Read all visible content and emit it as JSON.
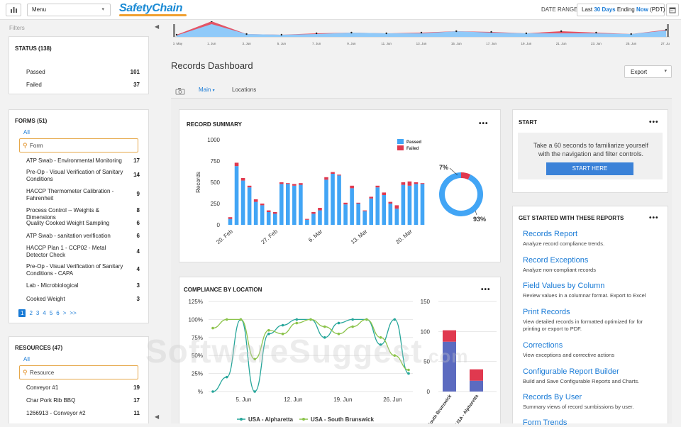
{
  "header": {
    "menu_label": "Menu",
    "logo_text": "SafetyChain",
    "date_range_label": "DATE RANGE",
    "date_range": {
      "prefix": "Last ",
      "days": "30 Days",
      "mid": " Ending ",
      "now": "Now",
      "suffix": " (PDT)"
    }
  },
  "sidebar": {
    "filters_label": "Filters",
    "status": {
      "title": "STATUS (138)",
      "items": [
        {
          "label": "Passed",
          "count": "101"
        },
        {
          "label": "Failed",
          "count": "37"
        }
      ]
    },
    "forms": {
      "title": "FORMS (51)",
      "all": "All",
      "search_placeholder": "Form",
      "items": [
        {
          "label": "ATP Swab - Environmental Monitoring",
          "count": "17"
        },
        {
          "label": "Pre-Op - Visual Verification of Sanitary Conditions",
          "count": "14"
        },
        {
          "label": "HACCP Thermometer Calibration - Fahrenheit",
          "count": "9"
        },
        {
          "label": "Process Control -- Weights & Dimensions",
          "count": "8"
        },
        {
          "label": "Quality Cooked Weight Sampling",
          "count": "6"
        },
        {
          "label": "ATP Swab - sanitation verification",
          "count": "6"
        },
        {
          "label": "HACCP Plan 1 - CCP02 - Metal Detector Check",
          "count": "4"
        },
        {
          "label": "Pre-Op - Visual Verification of Sanitary Conditions - CAPA",
          "count": "4"
        },
        {
          "label": "Lab - Microbiological",
          "count": "3"
        },
        {
          "label": "Cooked Weight",
          "count": "3"
        }
      ],
      "pages": [
        "1",
        "2",
        "3",
        "4",
        "5",
        "6",
        ">",
        ">>"
      ]
    },
    "resources": {
      "title": "RESOURCES (47)",
      "all": "All",
      "search_placeholder": "Resource",
      "items": [
        {
          "label": "Conveyor #1",
          "count": "19"
        },
        {
          "label": "Char Pork Rib BBQ",
          "count": "17"
        },
        {
          "label": "1266913 - Conveyor #2",
          "count": "11"
        }
      ]
    }
  },
  "timeline": {
    "ticks": [
      "30. May",
      "1. Jun",
      "3. Jun",
      "5. Jun",
      "7. Jun",
      "9. Jun",
      "11. Jun",
      "13. Jun",
      "15. Jun",
      "17. Jun",
      "19. Jun",
      "21. Jun",
      "23. Jun",
      "25. Jun",
      "27. Jun"
    ],
    "passed": [
      2,
      18,
      4,
      3,
      4,
      6,
      5,
      5,
      8,
      6,
      5,
      5,
      5,
      4,
      9
    ],
    "failed": [
      1,
      4,
      0,
      0,
      1,
      0,
      0,
      1,
      0,
      1,
      0,
      3,
      1,
      0,
      1
    ]
  },
  "dashboard": {
    "title": "Records Dashboard",
    "export_label": "Export",
    "tabs": [
      {
        "label": "Main"
      },
      {
        "label": "Locations"
      }
    ]
  },
  "record_summary": {
    "title": "RECORD SUMMARY",
    "more": "•••",
    "legend_passed": "Passed",
    "legend_failed": "Failed",
    "ylabel": "Records",
    "failed_pct": "7%",
    "passed_pct": "93%"
  },
  "compliance": {
    "title": "COMPLIANCE BY LOCATION",
    "more": "•••",
    "legend": [
      "USA - Alpharetta",
      "USA - South Brunswick"
    ]
  },
  "start_card": {
    "title": "START",
    "more": "•••",
    "text": "Take a 60 seconds to familiarize yourself with the navigation and filter controls.",
    "button": "START HERE"
  },
  "reports_card": {
    "title": "GET STARTED WITH THESE REPORTS",
    "more": "•••",
    "items": [
      {
        "title": "Records Report",
        "desc": "Analyze record compliance trends."
      },
      {
        "title": "Record Exceptions",
        "desc": "Analyze non-compliant records"
      },
      {
        "title": "Field Values by Column",
        "desc": "Review values in a columnar format. Export to Excel"
      },
      {
        "title": "Print Records",
        "desc": "View detailed records in formatted optimized for for printing or export to PDF."
      },
      {
        "title": "Corrections",
        "desc": "View exceptions and corrective actions"
      },
      {
        "title": "Configurable Report Builder",
        "desc": "Build and Save Configurable Reports and Charts."
      },
      {
        "title": "Records By User",
        "desc": "Summary views of record sumbissions by user."
      },
      {
        "title": "Form Trends",
        "desc": ""
      }
    ]
  },
  "watermark": "SoftwareSuggest",
  "watermark_suffix": ".com",
  "colors": {
    "accent": "#1a7bd6",
    "passed": "#42a5f5",
    "failed": "#e0394f",
    "alpharetta": "#26a69a",
    "brunswick": "#8bc34a",
    "stack_blue": "#5c6bc0"
  },
  "chart_data": [
    {
      "type": "bar",
      "stacked": true,
      "categories": [
        "20. Feb",
        "21. Feb",
        "22. Feb",
        "23. Feb",
        "24. Feb",
        "25. Feb",
        "26. Feb",
        "27. Feb",
        "28. Feb",
        "1. Mar",
        "2. Mar",
        "3. Mar",
        "4. Mar",
        "5. Mar",
        "6. Mar",
        "7. Mar",
        "8. Mar",
        "9. Mar",
        "10. Mar",
        "11. Mar",
        "12. Mar",
        "13. Mar",
        "14. Mar",
        "15. Mar",
        "16. Mar",
        "17. Mar",
        "18. Mar",
        "19. Mar",
        "20. Mar",
        "21. Mar",
        "22. Mar"
      ],
      "xtick_labels": [
        "20. Feb",
        "27. Feb",
        "6. Mar",
        "13. Mar",
        "20. Mar"
      ],
      "xtick_index": [
        0,
        7,
        14,
        21,
        28
      ],
      "series": [
        {
          "name": "Passed",
          "values": [
            70,
            690,
            520,
            440,
            270,
            230,
            150,
            130,
            480,
            480,
            460,
            470,
            60,
            130,
            170,
            530,
            600,
            580,
            240,
            430,
            250,
            160,
            310,
            440,
            350,
            250,
            190,
            470,
            460,
            480,
            480
          ]
        },
        {
          "name": "Failed",
          "values": [
            20,
            40,
            30,
            20,
            30,
            20,
            20,
            20,
            20,
            10,
            20,
            20,
            10,
            20,
            30,
            30,
            20,
            10,
            20,
            30,
            10,
            10,
            20,
            20,
            30,
            20,
            40,
            30,
            50,
            20,
            10
          ]
        }
      ],
      "ylabel": "Records",
      "yticks": [
        0,
        250,
        500,
        750,
        1000
      ],
      "ylim": [
        0,
        1000
      ]
    },
    {
      "type": "pie",
      "donut": true,
      "labels": [
        "Failed",
        "Passed"
      ],
      "values": [
        7,
        93
      ]
    },
    {
      "type": "line",
      "title": "COMPLIANCE BY LOCATION",
      "x": [
        "30. May",
        "1. Jun",
        "3. Jun",
        "5. Jun",
        "7. Jun",
        "9. Jun",
        "11. Jun",
        "13. Jun",
        "15. Jun",
        "17. Jun",
        "19. Jun",
        "21. Jun",
        "23. Jun",
        "25. Jun",
        "27. Jun"
      ],
      "xtick_labels": [
        "5. Jun",
        "12. Jun",
        "19. Jun",
        "26. Jun"
      ],
      "series": [
        {
          "name": "USA - Alpharetta",
          "values": [
            0,
            20,
            100,
            0,
            80,
            92,
            100,
            100,
            75,
            95,
            100,
            100,
            65,
            100,
            25
          ]
        },
        {
          "name": "USA - South Brunswick",
          "values": [
            88,
            100,
            100,
            45,
            85,
            80,
            95,
            100,
            90,
            80,
            90,
            100,
            75,
            50,
            30
          ]
        }
      ],
      "yticks": [
        "%",
        "25%",
        "50%",
        "75%",
        "100%",
        "125%"
      ],
      "ylim": [
        0,
        125
      ]
    },
    {
      "type": "bar",
      "stacked": true,
      "categories": [
        "USA - South Brunswick",
        "USA - Alpharetta"
      ],
      "series": [
        {
          "name": "Passed",
          "values": [
            83,
            18
          ]
        },
        {
          "name": "Failed",
          "values": [
            19,
            19
          ]
        }
      ],
      "yticks": [
        0,
        50,
        100,
        150
      ],
      "ylim": [
        0,
        150
      ]
    }
  ]
}
